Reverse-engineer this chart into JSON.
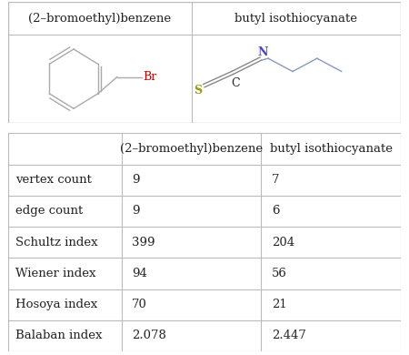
{
  "title1": "(2–bromoethyl)benzene",
  "title2": "butyl isothiocyanate",
  "rows": [
    {
      "label": "vertex count",
      "val1": "9",
      "val2": "7"
    },
    {
      "label": "edge count",
      "val1": "9",
      "val2": "6"
    },
    {
      "label": "Schultz index",
      "val1": "399",
      "val2": "204"
    },
    {
      "label": "Wiener index",
      "val1": "94",
      "val2": "56"
    },
    {
      "label": "Hosoya index",
      "val1": "70",
      "val2": "21"
    },
    {
      "label": "Balaban index",
      "val1": "2.078",
      "val2": "2.447"
    }
  ],
  "bg_color": "#ffffff",
  "line_color": "#bbbbbb",
  "text_color": "#222222",
  "ring_color": "#aaaaaa",
  "br_color": "#cc0000",
  "s_color": "#999900",
  "n_color": "#4444cc",
  "chain_color": "#8899bb",
  "bond_color": "#888888",
  "header_fontsize": 9.5,
  "cell_fontsize": 9.5
}
